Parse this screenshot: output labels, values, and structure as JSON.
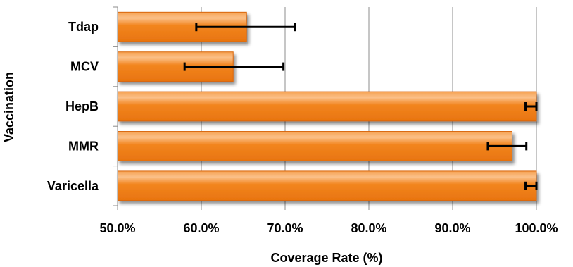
{
  "chart_data": {
    "type": "bar",
    "orientation": "horizontal",
    "title": "",
    "xlabel": "Coverage Rate (%)",
    "ylabel": "Vaccination",
    "xlim": [
      0.5,
      1.0
    ],
    "x_ticks": [
      0.5,
      0.6,
      0.7,
      0.8,
      0.9,
      1.0
    ],
    "x_tick_labels": [
      "50.0%",
      "60.0%",
      "70.0%",
      "80.0%",
      "90.0%",
      "100.0%"
    ],
    "categories": [
      "Tdap",
      "MCV",
      "HepB",
      "MMR",
      "Varicella"
    ],
    "values": [
      0.654,
      0.638,
      1.0,
      0.971,
      1.0
    ],
    "error_low": [
      0.594,
      0.58,
      0.987,
      0.942,
      0.987
    ],
    "error_high": [
      0.712,
      0.698,
      1.0,
      0.988,
      1.0
    ],
    "grid": "vertical",
    "legend": "none",
    "bar_color": "#f07f1c",
    "bar_highlight_color": "#f9b070",
    "error_bar_color": "#000000"
  }
}
